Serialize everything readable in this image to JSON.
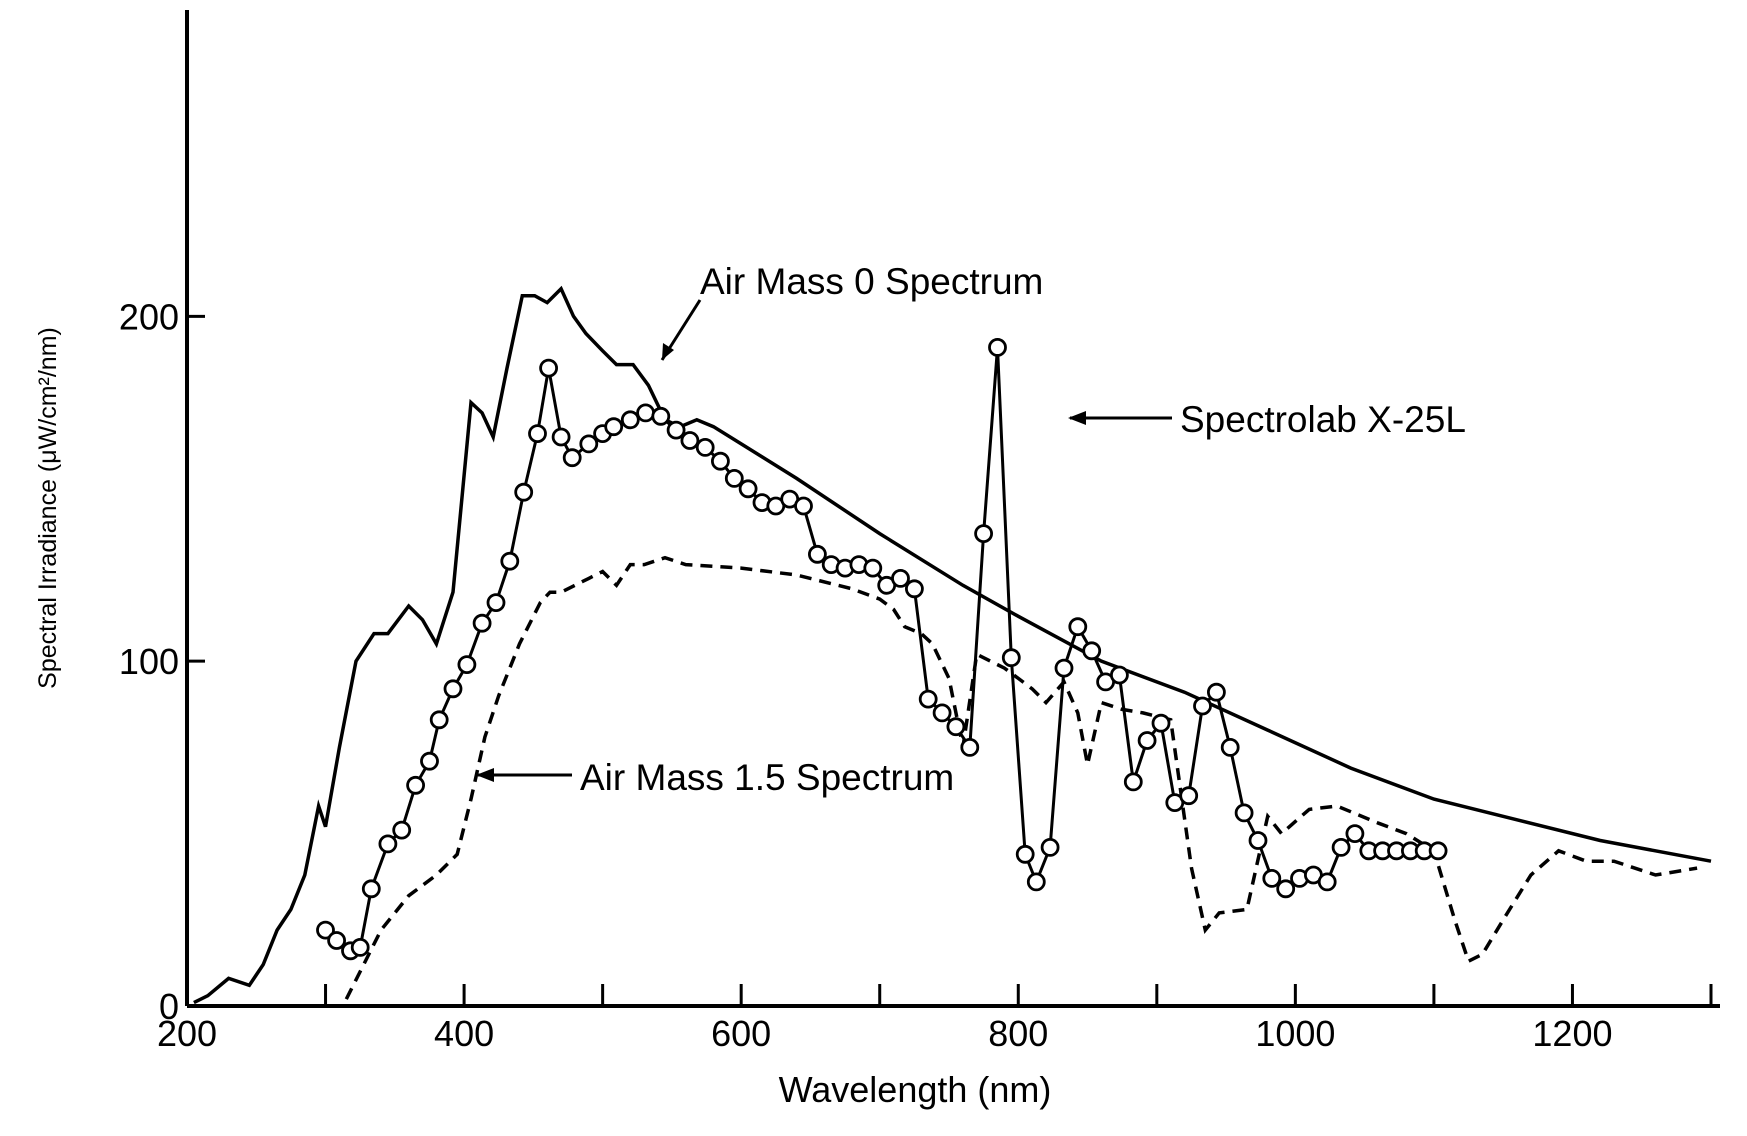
{
  "chart_data": {
    "type": "line",
    "xlabel": "Wavelength (nm)",
    "ylabel": "Spectral Irradiance (μW/cm²/nm)",
    "xlim": [
      200,
      1300
    ],
    "ylim": [
      0,
      290
    ],
    "x_ticks": [
      200,
      400,
      600,
      800,
      1000,
      1200
    ],
    "y_ticks": [
      0,
      100,
      200
    ],
    "x_minor_ticks": [
      300,
      500,
      700,
      900,
      1100,
      1300
    ],
    "grid": false,
    "legend": "none (series identified by arrow annotations)",
    "annotations": [
      {
        "text": "Air Mass 0 Spectrum",
        "series": "am0"
      },
      {
        "text": "Spectrolab X-25L",
        "series": "x25"
      },
      {
        "text": "Air Mass 1.5 Spectrum",
        "series": "am15"
      }
    ],
    "series": [
      {
        "id": "am0",
        "style": "solid",
        "x": [
          205,
          215,
          230,
          245,
          255,
          265,
          275,
          285,
          295,
          300,
          310,
          322,
          335,
          345,
          360,
          370,
          380,
          392,
          405,
          413,
          421,
          431,
          442,
          451,
          460,
          470,
          479,
          488,
          500,
          510,
          522,
          533,
          545,
          556,
          568,
          580,
          600,
          640,
          700,
          760,
          800,
          860,
          920,
          980,
          1040,
          1100,
          1160,
          1220,
          1300
        ],
        "values": [
          1,
          3,
          8,
          6,
          12,
          22,
          28,
          38,
          58,
          52,
          75,
          100,
          108,
          108,
          116,
          112,
          105,
          120,
          175,
          172,
          165,
          185,
          206,
          206,
          204,
          208,
          200,
          195,
          190,
          186,
          186,
          180,
          170,
          168,
          170,
          168,
          163,
          153,
          137,
          122,
          113,
          100,
          91,
          80,
          69,
          60,
          54,
          48,
          42
        ]
      },
      {
        "id": "am15",
        "style": "dashed",
        "x": [
          315,
          325,
          340,
          360,
          380,
          395,
          405,
          415,
          425,
          440,
          455,
          462,
          470,
          480,
          490,
          500,
          510,
          520,
          530,
          545,
          560,
          600,
          640,
          680,
          700,
          710,
          718,
          730,
          738,
          750,
          760,
          770,
          780,
          790,
          800,
          810,
          820,
          833,
          843,
          850,
          860,
          875,
          890,
          910,
          925,
          935,
          945,
          965,
          980,
          990,
          1010,
          1030,
          1060,
          1080,
          1100,
          1115,
          1125,
          1135,
          1150,
          1170,
          1190,
          1210,
          1230,
          1260,
          1290
        ],
        "values": [
          2,
          10,
          22,
          32,
          38,
          44,
          60,
          78,
          90,
          105,
          117,
          120,
          120,
          122,
          124,
          126,
          122,
          128,
          128,
          130,
          128,
          127,
          125,
          121,
          118,
          115,
          110,
          108,
          105,
          95,
          75,
          102,
          100,
          98,
          95,
          92,
          88,
          94,
          85,
          70,
          88,
          86,
          85,
          83,
          40,
          22,
          27,
          28,
          55,
          50,
          57,
          58,
          53,
          50,
          45,
          25,
          13,
          15,
          25,
          38,
          45,
          42,
          42,
          38,
          40
        ]
      },
      {
        "id": "x25",
        "style": "solid with circle markers",
        "x": [
          300,
          308,
          318,
          325,
          333,
          345,
          355,
          365,
          375,
          382,
          392,
          402,
          413,
          423,
          433,
          443,
          453,
          461,
          470,
          478,
          490,
          500,
          508,
          520,
          531,
          542,
          553,
          563,
          574,
          585,
          595,
          605,
          615,
          625,
          635,
          645,
          655,
          665,
          675,
          685,
          695,
          705,
          715,
          725,
          735,
          745,
          755,
          765,
          775,
          785,
          795,
          805,
          813,
          823,
          833,
          843,
          853,
          863,
          873,
          883,
          893,
          903,
          913,
          923,
          933,
          943,
          953,
          963,
          973,
          983,
          993,
          1003,
          1013,
          1023,
          1033,
          1043,
          1053,
          1063,
          1073,
          1083,
          1093,
          1103
        ],
        "values": [
          22,
          19,
          16,
          17,
          34,
          47,
          51,
          64,
          71,
          83,
          92,
          99,
          111,
          117,
          129,
          149,
          166,
          185,
          165,
          159,
          163,
          166,
          168,
          170,
          172,
          171,
          167,
          164,
          162,
          158,
          153,
          150,
          146,
          145,
          147,
          145,
          131,
          128,
          127,
          128,
          127,
          122,
          124,
          121,
          89,
          85,
          81,
          75,
          137,
          191,
          101,
          44,
          36,
          46,
          98,
          110,
          103,
          94,
          96,
          65,
          77,
          82,
          59,
          61,
          87,
          91,
          75,
          56,
          48,
          37,
          34,
          37,
          38,
          36,
          46,
          50,
          45,
          45,
          45,
          45,
          45,
          45
        ]
      }
    ]
  }
}
